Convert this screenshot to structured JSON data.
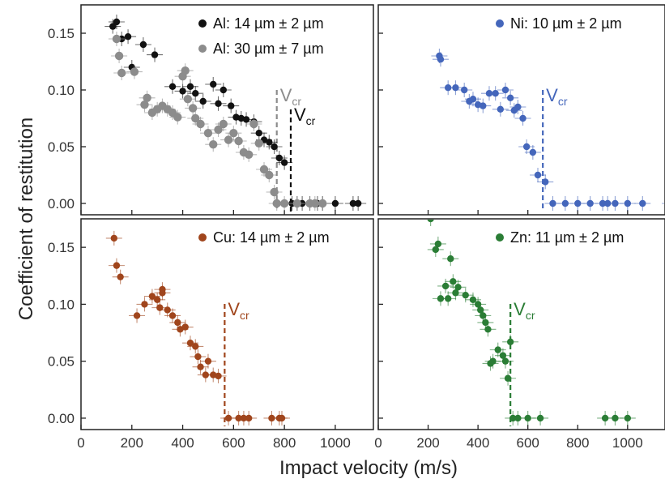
{
  "figure": {
    "ylabel": "Coefficient of restitution",
    "xlabel": "Impact velocity (m/s)"
  },
  "chart_data": [
    {
      "type": "scatter",
      "panel": "top-left",
      "xlim": [
        0,
        1150
      ],
      "ylim": [
        -0.01,
        0.175
      ],
      "yticks": [
        0.0,
        0.05,
        0.1,
        0.15
      ],
      "ytick_labels": [
        "0.00",
        "0.05",
        "0.10",
        "0.15"
      ],
      "legend_position": "top-right",
      "series": [
        {
          "name": "Al: 14 µm ± 2 µm",
          "color": "#111111",
          "x": [
            125,
            140,
            160,
            185,
            200,
            245,
            290,
            360,
            400,
            430,
            450,
            480,
            520,
            540,
            560,
            590,
            610,
            630,
            650,
            680,
            700,
            720,
            740,
            760,
            780,
            800,
            830,
            850,
            870,
            900,
            930,
            950,
            1000,
            1070,
            1090
          ],
          "y": [
            0.156,
            0.16,
            0.145,
            0.147,
            0.12,
            0.14,
            0.131,
            0.103,
            0.099,
            0.103,
            0.097,
            0.09,
            0.105,
            0.088,
            0.1,
            0.086,
            0.076,
            0.075,
            0.074,
            0.072,
            0.062,
            0.056,
            0.054,
            0.05,
            0.04,
            0.036,
            0.0,
            0.0,
            0.0,
            0.0,
            0.0,
            0.0,
            0.0,
            0.0,
            0.0
          ]
        },
        {
          "name": "Al: 30 µm ± 7 µm",
          "color": "#8c8c8c",
          "x": [
            140,
            150,
            160,
            210,
            250,
            260,
            280,
            300,
            320,
            340,
            360,
            380,
            400,
            410,
            420,
            440,
            450,
            470,
            500,
            520,
            540,
            560,
            580,
            600,
            620,
            640,
            660,
            680,
            700,
            720,
            740,
            760,
            770,
            800,
            850,
            900,
            920,
            950
          ],
          "y": [
            0.145,
            0.13,
            0.115,
            0.116,
            0.087,
            0.093,
            0.08,
            0.083,
            0.086,
            0.083,
            0.08,
            0.076,
            0.112,
            0.117,
            0.092,
            0.084,
            0.075,
            0.07,
            0.062,
            0.052,
            0.065,
            0.07,
            0.056,
            0.062,
            0.055,
            0.045,
            0.043,
            0.07,
            0.053,
            0.03,
            0.025,
            0.01,
            0.0,
            0.0,
            0.0,
            0.0,
            0.0,
            0.0
          ]
        }
      ],
      "vcr": [
        {
          "label_main": "V",
          "label_sub": "cr",
          "x": 770,
          "color": "#8c8c8c"
        },
        {
          "label_main": "V",
          "label_sub": "cr",
          "x": 825,
          "color": "#111111"
        }
      ]
    },
    {
      "type": "scatter",
      "panel": "top-right",
      "xlim": [
        0,
        1150
      ],
      "ylim": [
        -0.01,
        0.175
      ],
      "legend_position": "top-right",
      "series": [
        {
          "name": "Ni: 10 µm ± 2 µm",
          "color": "#4466bb",
          "x": [
            245,
            250,
            280,
            310,
            345,
            365,
            380,
            400,
            420,
            445,
            470,
            490,
            510,
            530,
            545,
            560,
            580,
            595,
            620,
            640,
            670,
            700,
            750,
            800,
            850,
            900,
            920,
            950,
            1000,
            1060,
            1170
          ],
          "y": [
            0.13,
            0.127,
            0.102,
            0.102,
            0.1,
            0.09,
            0.092,
            0.087,
            0.086,
            0.097,
            0.097,
            0.083,
            0.1,
            0.093,
            0.082,
            0.085,
            0.075,
            0.05,
            0.045,
            0.025,
            0.019,
            0.0,
            0.0,
            0.0,
            0.0,
            0.0,
            0.0,
            0.0,
            0.0,
            0.0,
            0.0
          ]
        }
      ],
      "vcr": [
        {
          "label_main": "V",
          "label_sub": "cr",
          "x": 660,
          "color": "#4466bb"
        }
      ]
    },
    {
      "type": "scatter",
      "panel": "bottom-left",
      "xlim": [
        0,
        1150
      ],
      "ylim": [
        -0.01,
        0.175
      ],
      "xticks": [
        0,
        200,
        400,
        600,
        800,
        1000
      ],
      "xtick_labels": [
        "0",
        "200",
        "400",
        "600",
        "800",
        "1000"
      ],
      "yticks": [
        0.0,
        0.05,
        0.1,
        0.15
      ],
      "ytick_labels": [
        "0.00",
        "0.05",
        "0.10",
        "0.15"
      ],
      "legend_position": "top-right",
      "series": [
        {
          "name": "Cu: 14 µm ± 2 µm",
          "color": "#a0451c",
          "x": [
            130,
            140,
            155,
            220,
            250,
            280,
            300,
            310,
            320,
            320,
            340,
            360,
            380,
            390,
            410,
            430,
            450,
            460,
            470,
            490,
            500,
            520,
            540,
            580,
            620,
            640,
            660,
            750,
            780,
            790
          ],
          "y": [
            0.158,
            0.134,
            0.124,
            0.09,
            0.1,
            0.107,
            0.104,
            0.097,
            0.11,
            0.113,
            0.095,
            0.09,
            0.084,
            0.078,
            0.08,
            0.066,
            0.063,
            0.054,
            0.045,
            0.038,
            0.05,
            0.038,
            0.037,
            0.0,
            0.0,
            0.0,
            0.0,
            0.0,
            0.0,
            0.0
          ]
        }
      ],
      "vcr": [
        {
          "label_main": "V",
          "label_sub": "cr",
          "x": 565,
          "color": "#a0451c"
        }
      ]
    },
    {
      "type": "scatter",
      "panel": "bottom-right",
      "xlim": [
        0,
        1150
      ],
      "ylim": [
        -0.01,
        0.175
      ],
      "xticks": [
        0,
        200,
        400,
        600,
        800,
        1000
      ],
      "xtick_labels": [
        "0",
        "200",
        "400",
        "600",
        "800",
        "1000"
      ],
      "legend_position": "top-right",
      "series": [
        {
          "name": "Zn: 11 µm ± 2 µm",
          "color": "#2a7d35",
          "x": [
            210,
            230,
            240,
            250,
            270,
            280,
            290,
            300,
            310,
            320,
            350,
            380,
            400,
            410,
            420,
            430,
            440,
            450,
            460,
            480,
            500,
            510,
            520,
            530,
            540,
            560,
            600,
            650,
            910,
            950,
            1000
          ],
          "y": [
            0.175,
            0.148,
            0.153,
            0.105,
            0.116,
            0.105,
            0.14,
            0.12,
            0.11,
            0.115,
            0.108,
            0.104,
            0.1,
            0.095,
            0.09,
            0.084,
            0.078,
            0.048,
            0.05,
            0.06,
            0.055,
            0.05,
            0.035,
            0.067,
            0.0,
            0.0,
            0.0,
            0.0,
            0.0,
            0.0,
            0.0
          ]
        }
      ],
      "vcr": [
        {
          "label_main": "V",
          "label_sub": "cr",
          "x": 530,
          "color": "#2a7d35"
        }
      ]
    }
  ]
}
